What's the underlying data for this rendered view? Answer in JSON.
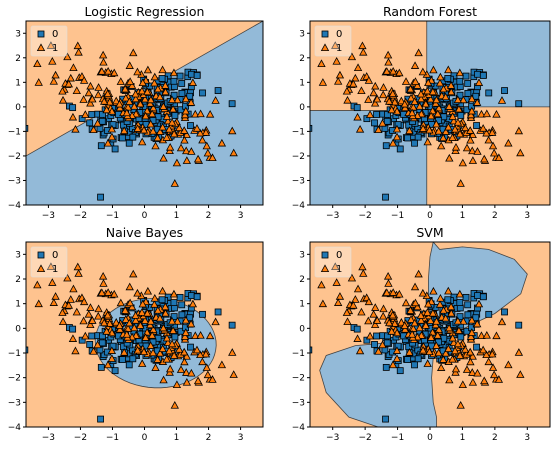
{
  "colors": {
    "class0_fill": "#1f77b4",
    "class1_fill": "#ff7f0e",
    "region0": "#93bad8",
    "region1": "#fec38f",
    "edge": "#000000",
    "axis": "#000000"
  },
  "chart_data": [
    {
      "type": "scatter",
      "title": "Logistic Regression",
      "boundary": "linear",
      "xlim": [
        -3.7,
        3.7
      ],
      "ylim": [
        -4,
        3.5
      ],
      "xticks": [
        -3,
        -2,
        -1,
        0,
        1,
        2,
        3
      ],
      "yticks": [
        3,
        2,
        1,
        0,
        -1,
        -2,
        -3,
        -4
      ],
      "legend": {
        "placement": "upper-left",
        "entries": [
          "0",
          "1"
        ]
      },
      "grid": false
    },
    {
      "type": "scatter",
      "title": "Random Forest",
      "boundary": "axis-aligned",
      "xlim": [
        -3.7,
        3.7
      ],
      "ylim": [
        -4,
        3.5
      ],
      "xticks": [
        -3,
        -2,
        -1,
        0,
        1,
        2,
        3
      ],
      "yticks": [
        3,
        2,
        1,
        0,
        -1,
        -2,
        -3,
        -4
      ],
      "legend": {
        "placement": "upper-left",
        "entries": [
          "0",
          "1"
        ]
      },
      "grid": false
    },
    {
      "type": "scatter",
      "title": "Naive Bayes",
      "boundary": "ellipse",
      "xlim": [
        -3.7,
        3.7
      ],
      "ylim": [
        -4,
        3.5
      ],
      "xticks": [
        -3,
        -2,
        -1,
        0,
        1,
        2,
        3
      ],
      "yticks": [
        3,
        2,
        1,
        0,
        -1,
        -2,
        -3,
        -4
      ],
      "legend": {
        "placement": "upper-left",
        "entries": [
          "0",
          "1"
        ]
      },
      "grid": false
    },
    {
      "type": "scatter",
      "title": "SVM",
      "boundary": "rbf",
      "xlim": [
        -3.7,
        3.7
      ],
      "ylim": [
        -4,
        3.5
      ],
      "xticks": [
        -3,
        -2,
        -1,
        0,
        1,
        2,
        3
      ],
      "yticks": [
        3,
        2,
        1,
        0,
        -1,
        -2,
        -3,
        -4
      ],
      "legend": {
        "placement": "upper-left",
        "entries": [
          "0",
          "1"
        ]
      },
      "grid": false
    }
  ]
}
